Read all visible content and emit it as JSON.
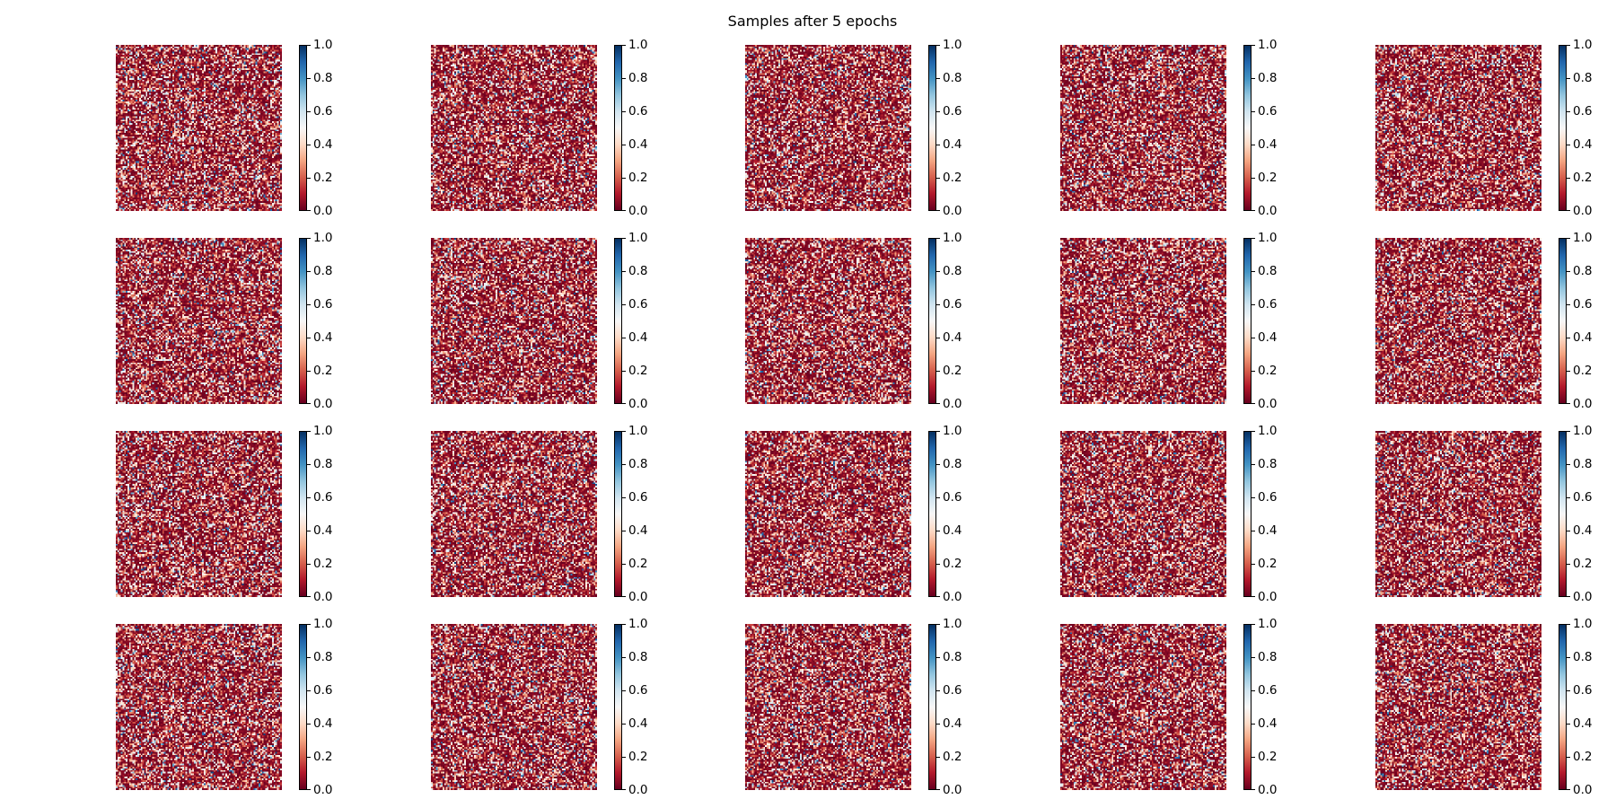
{
  "chart_data": {
    "type": "heatmap",
    "title": "Samples after 5 epochs",
    "layout": {
      "rows": 4,
      "cols": 5
    },
    "colormap": "RdBu",
    "colorbar": {
      "range": [
        0.0,
        1.0
      ],
      "ticks": [
        0.0,
        0.2,
        0.4,
        0.6,
        0.8,
        1.0
      ],
      "tick_labels": [
        "0.0",
        "0.2",
        "0.4",
        "0.6",
        "0.8",
        "1.0"
      ]
    },
    "image_size": [
      100,
      100
    ],
    "value_distribution": "noise, mostly near 0.0 with scattered higher values",
    "xticks": "none",
    "yticks": "none",
    "grid": false,
    "panels": [
      {
        "row": 0,
        "col": 0,
        "seed": 11
      },
      {
        "row": 0,
        "col": 1,
        "seed": 23
      },
      {
        "row": 0,
        "col": 2,
        "seed": 37
      },
      {
        "row": 0,
        "col": 3,
        "seed": 41
      },
      {
        "row": 0,
        "col": 4,
        "seed": 53
      },
      {
        "row": 1,
        "col": 0,
        "seed": 67
      },
      {
        "row": 1,
        "col": 1,
        "seed": 71
      },
      {
        "row": 1,
        "col": 2,
        "seed": 83
      },
      {
        "row": 1,
        "col": 3,
        "seed": 97
      },
      {
        "row": 1,
        "col": 4,
        "seed": 101
      },
      {
        "row": 2,
        "col": 0,
        "seed": 113
      },
      {
        "row": 2,
        "col": 1,
        "seed": 127
      },
      {
        "row": 2,
        "col": 2,
        "seed": 131
      },
      {
        "row": 2,
        "col": 3,
        "seed": 149
      },
      {
        "row": 2,
        "col": 4,
        "seed": 157
      },
      {
        "row": 3,
        "col": 0,
        "seed": 163
      },
      {
        "row": 3,
        "col": 1,
        "seed": 179
      },
      {
        "row": 3,
        "col": 2,
        "seed": 191
      },
      {
        "row": 3,
        "col": 3,
        "seed": 199
      },
      {
        "row": 3,
        "col": 4,
        "seed": 211
      }
    ]
  }
}
